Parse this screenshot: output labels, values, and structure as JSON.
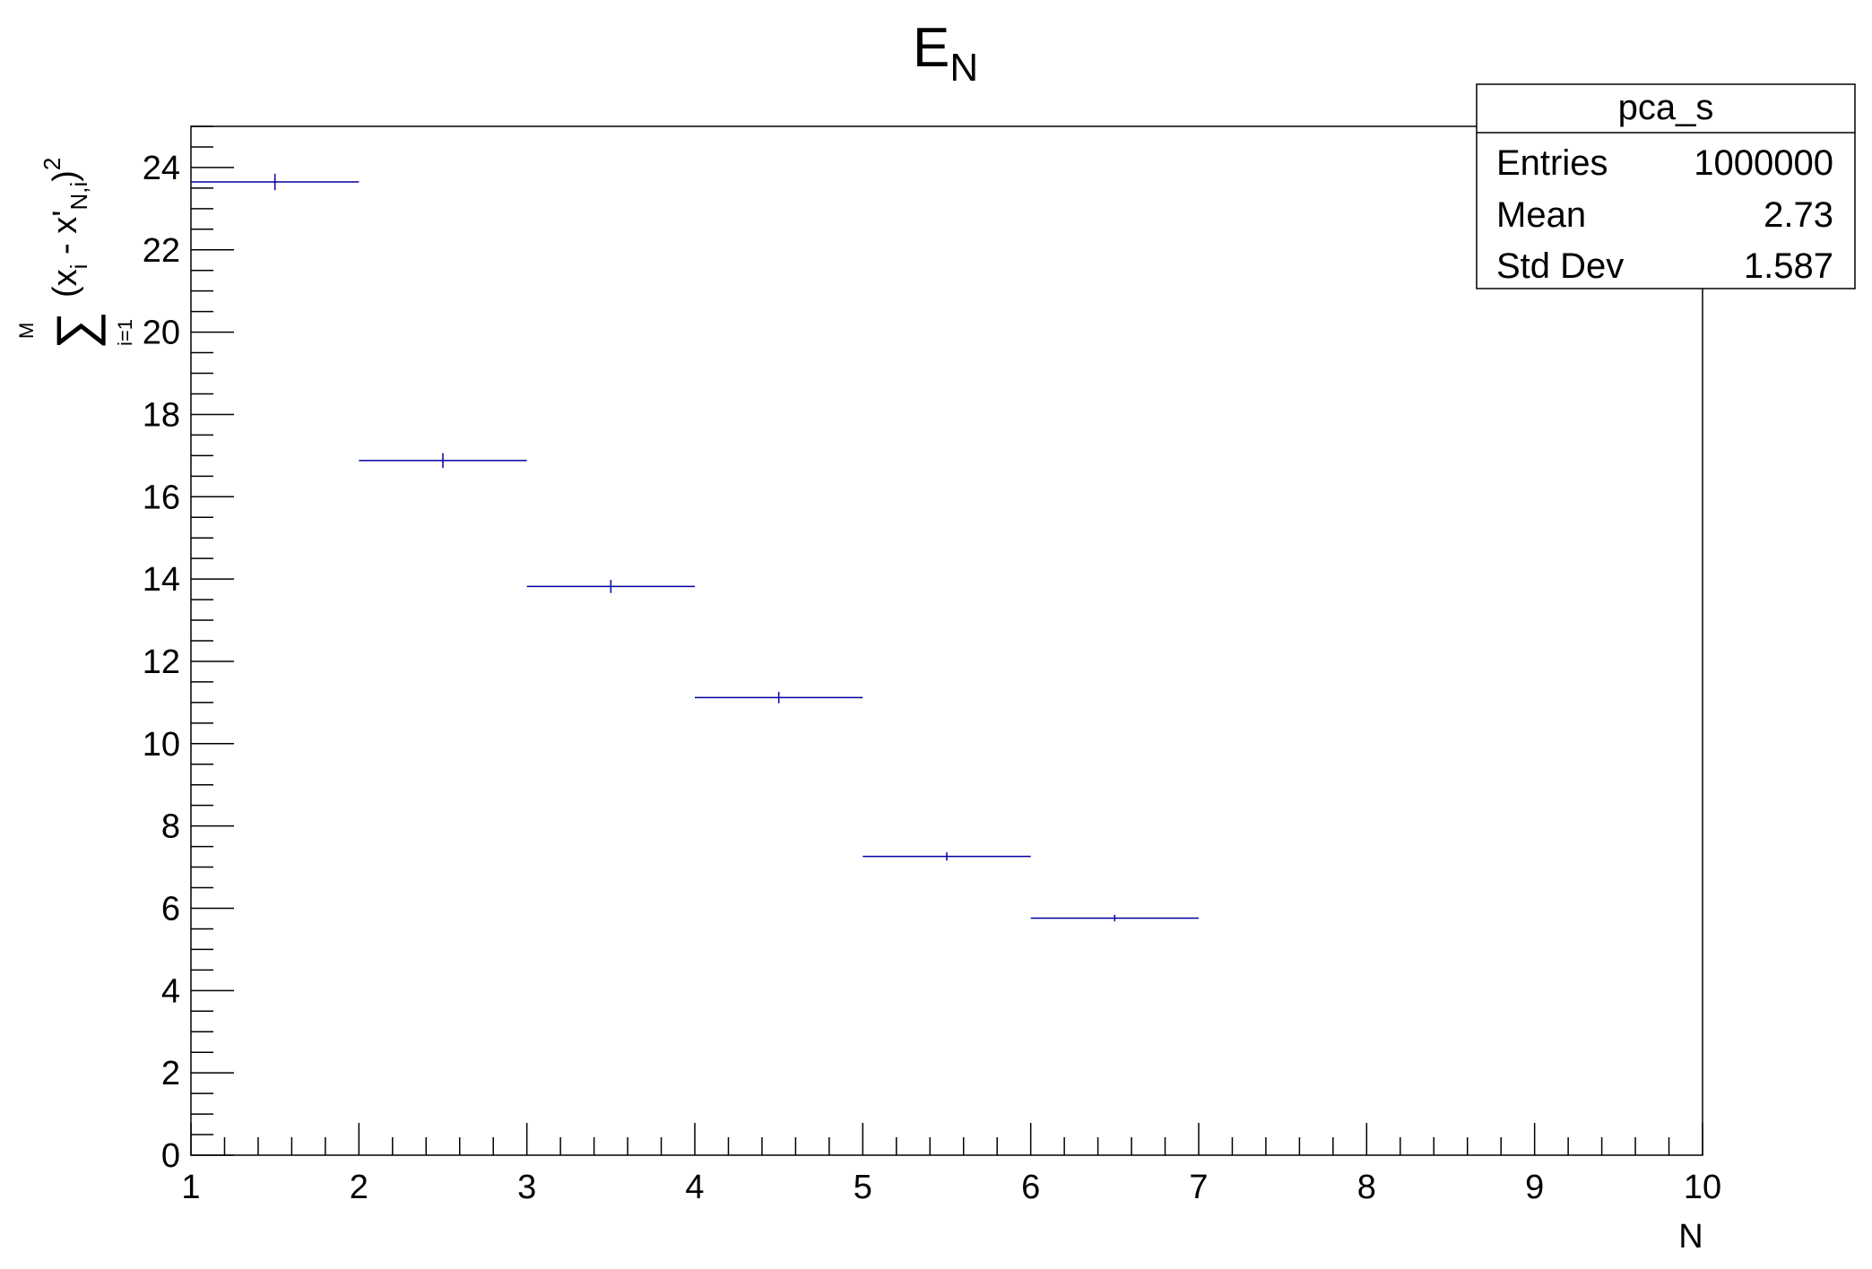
{
  "chart_data": {
    "type": "histogram",
    "title": {
      "main": "E",
      "sub": "N"
    },
    "xlabel": "N",
    "ylabel": {
      "sum_symbol": "∑",
      "sum_upper": "M",
      "sum_lower": "i=1",
      "open": "(x",
      "sub_i": "i",
      "mid": " - x'",
      "sub_ni": "N,i",
      "close": ")",
      "sup": "2"
    },
    "xlim": [
      1,
      10
    ],
    "ylim": [
      0,
      25
    ],
    "x_ticks": [
      "1",
      "2",
      "3",
      "4",
      "5",
      "6",
      "7",
      "8",
      "9",
      "10"
    ],
    "y_ticks": [
      "0",
      "2",
      "4",
      "6",
      "8",
      "10",
      "12",
      "14",
      "16",
      "18",
      "20",
      "22",
      "24"
    ],
    "bins": [
      {
        "x_low": 1,
        "x_high": 2,
        "value": 23.65,
        "error": 0.2
      },
      {
        "x_low": 2,
        "x_high": 3,
        "value": 16.88,
        "error": 0.18
      },
      {
        "x_low": 3,
        "x_high": 4,
        "value": 13.82,
        "error": 0.16
      },
      {
        "x_low": 4,
        "x_high": 5,
        "value": 11.12,
        "error": 0.14
      },
      {
        "x_low": 5,
        "x_high": 6,
        "value": 7.26,
        "error": 0.1
      },
      {
        "x_low": 6,
        "x_high": 7,
        "value": 5.76,
        "error": 0.08
      }
    ],
    "series_color": "#0000a0",
    "grid": false,
    "stats_box": {
      "name": "pca_s",
      "position": "top-right",
      "rows": [
        {
          "label": "Entries",
          "value": "1000000"
        },
        {
          "label": "Mean",
          "value": "2.73"
        },
        {
          "label": "Std Dev",
          "value": "1.587"
        }
      ]
    }
  }
}
